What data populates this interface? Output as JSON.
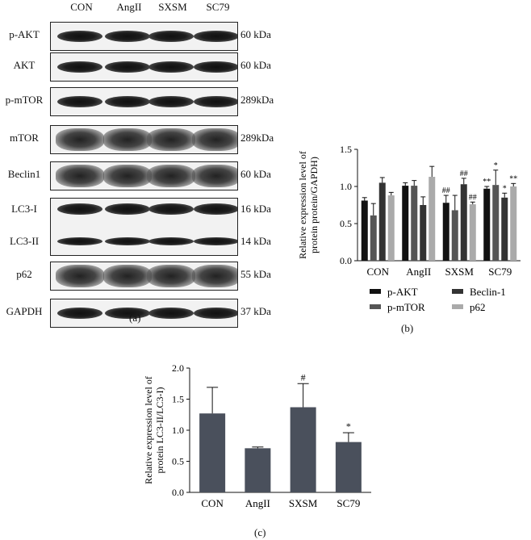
{
  "blot": {
    "lanes": [
      "CON",
      "AngII",
      "SXSM",
      "SC79"
    ],
    "rows": [
      {
        "label": "p-AKT",
        "mw": "60 kDa",
        "style": "sharp"
      },
      {
        "label": "AKT",
        "mw": "60 kDa",
        "style": "sharp"
      },
      {
        "label": "p-mTOR",
        "mw": "289kDa",
        "style": "sharp"
      },
      {
        "label": "mTOR",
        "mw": "289kDa",
        "style": "smear"
      },
      {
        "label": "Beclin1",
        "mw": "60 kDa",
        "style": "smear"
      },
      {
        "label": "LC3-I",
        "mw": "16 kDa",
        "label2": "LC3-II",
        "mw2": "14 kDa",
        "style": "double"
      },
      {
        "label": "p62",
        "mw": "55 kDa",
        "style": "smear"
      },
      {
        "label": "GAPDH",
        "mw": "37 kDa",
        "style": "sharp"
      }
    ],
    "panel_label": "(a)"
  },
  "chart_data": [
    {
      "type": "bar",
      "panel_label": "(b)",
      "categories": [
        "CON",
        "AngII",
        "SXSM",
        "SC79"
      ],
      "ylabel": "Relative expression level of protein protein/GAPDH)",
      "ylabel_lines": [
        "Relative expression level of",
        "protein protein/GAPDH)"
      ],
      "ylim": [
        0,
        1.5
      ],
      "yticks": [
        "0.0",
        "0.5",
        "1.0",
        "1.5"
      ],
      "legend_position": "bottom",
      "series": [
        {
          "name": "p-AKT",
          "color": "#111111",
          "values": [
            0.81,
            1.01,
            0.78,
            0.97
          ],
          "errors": [
            0.04,
            0.04,
            0.1,
            0.03
          ],
          "marks": [
            "",
            "",
            "##",
            "**"
          ]
        },
        {
          "name": "p-mTOR",
          "color": "#555555",
          "values": [
            0.61,
            1.01,
            0.68,
            1.02
          ],
          "errors": [
            0.16,
            0.07,
            0.2,
            0.2
          ],
          "marks": [
            "",
            "",
            "",
            "*"
          ]
        },
        {
          "name": "Beclin-1",
          "color": "#333333",
          "values": [
            1.05,
            0.75,
            1.03,
            0.85
          ],
          "errors": [
            0.07,
            0.11,
            0.08,
            0.06
          ],
          "marks": [
            "",
            "",
            "##",
            "*"
          ]
        },
        {
          "name": "p62",
          "color": "#aaaaaa",
          "values": [
            0.88,
            1.13,
            0.76,
            1.0
          ],
          "errors": [
            0.04,
            0.14,
            0.03,
            0.04
          ],
          "marks": [
            "",
            "",
            "##",
            "**"
          ]
        }
      ]
    },
    {
      "type": "bar",
      "panel_label": "(c)",
      "categories": [
        "CON",
        "AngII",
        "SXSM",
        "SC79"
      ],
      "ylabel": "Relative expression level of protein LC3-II/LC3-I)",
      "ylabel_lines": [
        "Relative expression level of",
        "protein LC3-II/LC3-I)"
      ],
      "ylim": [
        0,
        2.0
      ],
      "yticks": [
        "0.0",
        "0.5",
        "1.0",
        "1.5",
        "2.0"
      ],
      "color": "#4a505c",
      "values": [
        1.27,
        0.71,
        1.37,
        0.81
      ],
      "errors": [
        0.42,
        0.02,
        0.38,
        0.15
      ],
      "marks": [
        "",
        "",
        "#",
        "*"
      ]
    }
  ]
}
